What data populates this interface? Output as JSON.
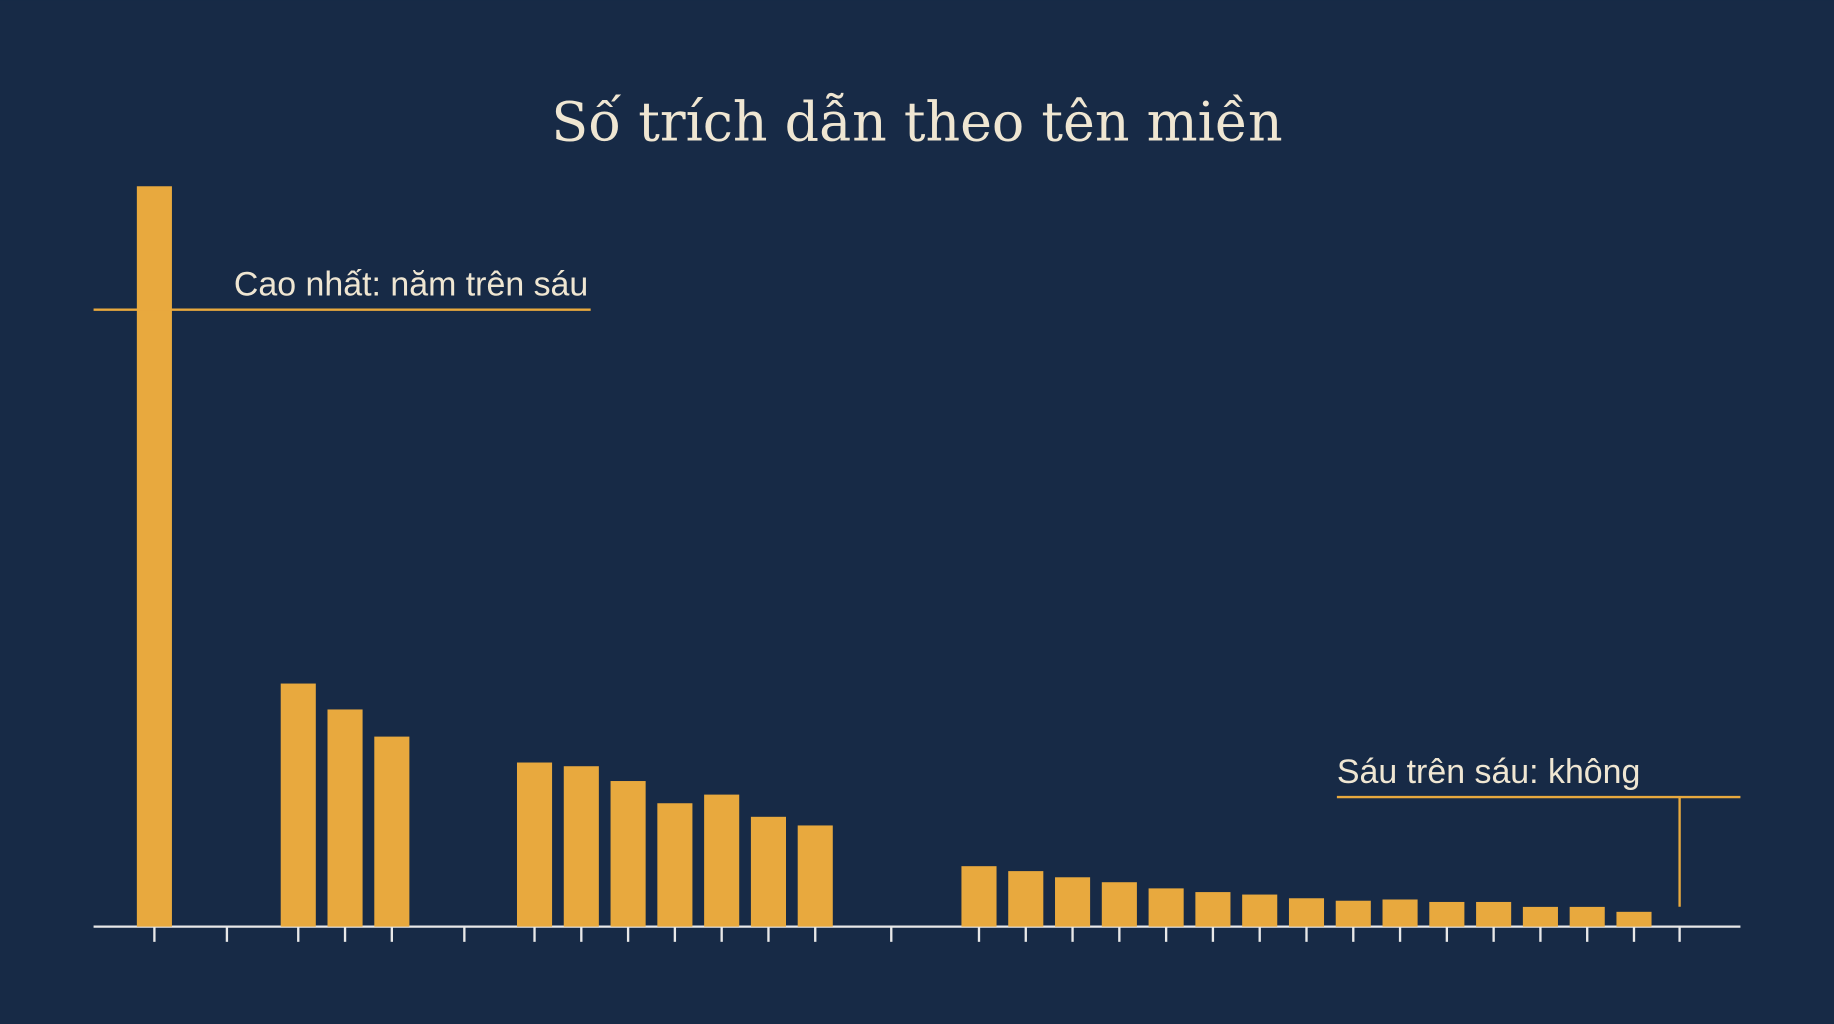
{
  "chart_data": {
    "type": "bar",
    "title": "Số trích dẫn theo tên miền",
    "categories": [
      null,
      null,
      null,
      null,
      null,
      null,
      null,
      null,
      null,
      null,
      null,
      null,
      null,
      null,
      null,
      null,
      null,
      null,
      null,
      null,
      null,
      null,
      null,
      null,
      null,
      null,
      null,
      null,
      null,
      null
    ],
    "values": [
      6.0,
      null,
      1.97,
      1.76,
      1.54,
      null,
      1.33,
      1.3,
      1.18,
      1.0,
      1.07,
      0.89,
      0.82,
      null,
      0.49,
      0.45,
      0.4,
      0.36,
      0.31,
      0.28,
      0.26,
      0.23,
      0.21,
      0.22,
      0.2,
      0.2,
      0.16,
      0.16,
      0.12,
      null
    ],
    "color": "#e8a93e",
    "ylim": [
      0,
      6
    ],
    "annotations": [
      {
        "text": "Cao nhất: năm trên sáu",
        "value": 5
      },
      {
        "text": "Sáu trên sáu: không",
        "value": 1.05
      }
    ]
  }
}
